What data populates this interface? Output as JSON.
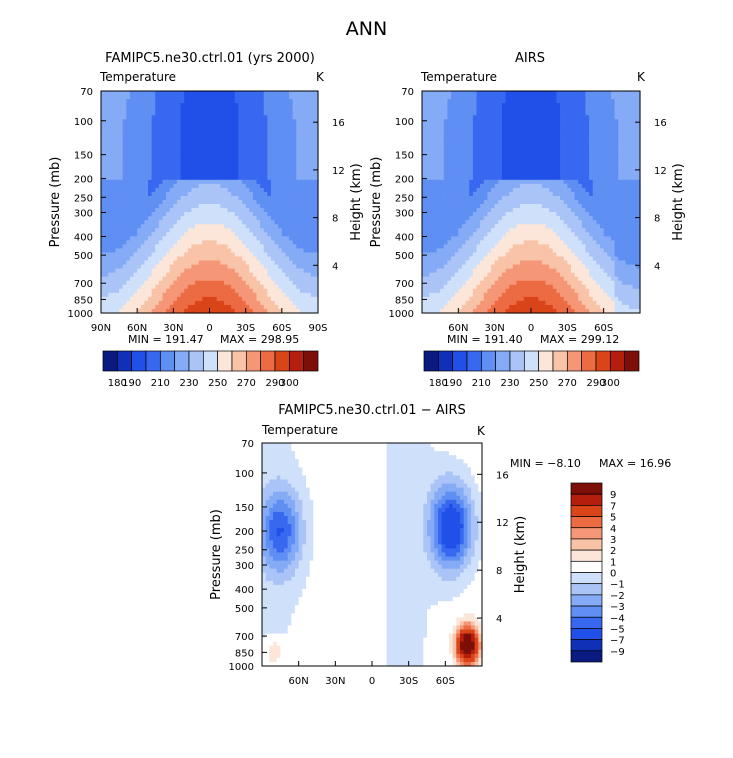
{
  "figure_title": "ANN",
  "chart_data": [
    {
      "type": "heatmap",
      "title": "FAMIPC5.ne30.ctrl.01 (yrs 2000)",
      "variable": "Temperature",
      "units": "K",
      "xlabel": "",
      "ylabel": "Pressure (mb)",
      "y2label": "Height (km)",
      "x_ticks": [
        "90N",
        "60N",
        "30N",
        "0",
        "30S",
        "60S",
        "90S"
      ],
      "x_tick_values": [
        90,
        60,
        30,
        0,
        -30,
        -60,
        -90
      ],
      "y_ticks": [
        "70",
        "100",
        "150",
        "200",
        "250",
        "300",
        "400",
        "500",
        "700",
        "850",
        "1000"
      ],
      "y2_ticks": [
        "4",
        "8",
        "12",
        "16"
      ],
      "xlim": [
        90,
        -90
      ],
      "ylim": [
        1000,
        70
      ],
      "y_scale": "log-pressure",
      "min": 191.47,
      "max": 298.95,
      "min_label": "MIN = 191.47",
      "max_label": "MAX = 298.95",
      "colorbar": {
        "orientation": "horizontal",
        "levels": [
          "180",
          "190",
          "200",
          "210",
          "220",
          "230",
          "240",
          "250",
          "260",
          "270",
          "280",
          "290",
          "300"
        ],
        "labels": [
          "180",
          "190",
          "210",
          "230",
          "250",
          "270",
          "290",
          "300"
        ],
        "colors": [
          "#0a1a80",
          "#1030b8",
          "#2050e8",
          "#3868f0",
          "#5f8ff3",
          "#85abf6",
          "#aac4f8",
          "#cfe0fa",
          "#fbe6d9",
          "#f9c3a8",
          "#f59676",
          "#ec6b43",
          "#d94418",
          "#b51d0c",
          "#7d0f08"
        ]
      }
    },
    {
      "type": "heatmap",
      "title": "AIRS",
      "variable": "Temperature",
      "units": "K",
      "xlabel": "",
      "ylabel": "Pressure (mb)",
      "y2label": "Height (km)",
      "x_ticks": [
        "60N",
        "30N",
        "0",
        "30S",
        "60S"
      ],
      "x_tick_values": [
        60,
        30,
        0,
        -30,
        -60
      ],
      "y_ticks": [
        "70",
        "100",
        "150",
        "200",
        "250",
        "300",
        "400",
        "500",
        "700",
        "850",
        "1000"
      ],
      "y2_ticks": [
        "4",
        "8",
        "12",
        "16"
      ],
      "xlim": [
        90,
        -90
      ],
      "ylim": [
        1000,
        70
      ],
      "y_scale": "log-pressure",
      "min": 191.4,
      "max": 299.12,
      "min_label": "MIN = 191.40",
      "max_label": "MAX = 299.12",
      "colorbar": {
        "orientation": "horizontal",
        "levels": [
          "180",
          "190",
          "200",
          "210",
          "220",
          "230",
          "240",
          "250",
          "260",
          "270",
          "280",
          "290",
          "300"
        ],
        "labels": [
          "180",
          "190",
          "210",
          "230",
          "250",
          "270",
          "290",
          "300"
        ],
        "colors": [
          "#0a1a80",
          "#1030b8",
          "#2050e8",
          "#3868f0",
          "#5f8ff3",
          "#85abf6",
          "#aac4f8",
          "#cfe0fa",
          "#fbe6d9",
          "#f9c3a8",
          "#f59676",
          "#ec6b43",
          "#d94418",
          "#b51d0c",
          "#7d0f08"
        ]
      }
    },
    {
      "type": "heatmap",
      "title": "FAMIPC5.ne30.ctrl.01 − AIRS",
      "variable": "Temperature",
      "units": "K",
      "xlabel": "",
      "ylabel": "Pressure (mb)",
      "y2label": "Height (km)",
      "x_ticks": [
        "60N",
        "30N",
        "0",
        "30S",
        "60S"
      ],
      "x_tick_values": [
        60,
        30,
        0,
        -30,
        -60
      ],
      "y_ticks": [
        "70",
        "100",
        "150",
        "200",
        "250",
        "300",
        "400",
        "500",
        "700",
        "850",
        "1000"
      ],
      "y2_ticks": [
        "4",
        "8",
        "12",
        "16"
      ],
      "xlim": [
        90,
        -90
      ],
      "ylim": [
        1000,
        70
      ],
      "y_scale": "log-pressure",
      "min": -8.1,
      "max": 16.96,
      "min_label": "MIN =   −8.10",
      "max_label": "MAX =  16.96",
      "colorbar": {
        "orientation": "vertical",
        "labels": [
          "9",
          "7",
          "5",
          "4",
          "3",
          "2",
          "1",
          "0",
          "−1",
          "−2",
          "−3",
          "−4",
          "−5",
          "−7",
          "−9"
        ],
        "colors": [
          "#7d0f08",
          "#b51d0c",
          "#d94418",
          "#ec6b43",
          "#f59676",
          "#f9c3a8",
          "#fbe6d9",
          "#ffffff",
          "#cfe0fa",
          "#aac4f8",
          "#85abf6",
          "#5f8ff3",
          "#3868f0",
          "#2050e8",
          "#1030b8",
          "#0a1a80"
        ]
      }
    }
  ]
}
